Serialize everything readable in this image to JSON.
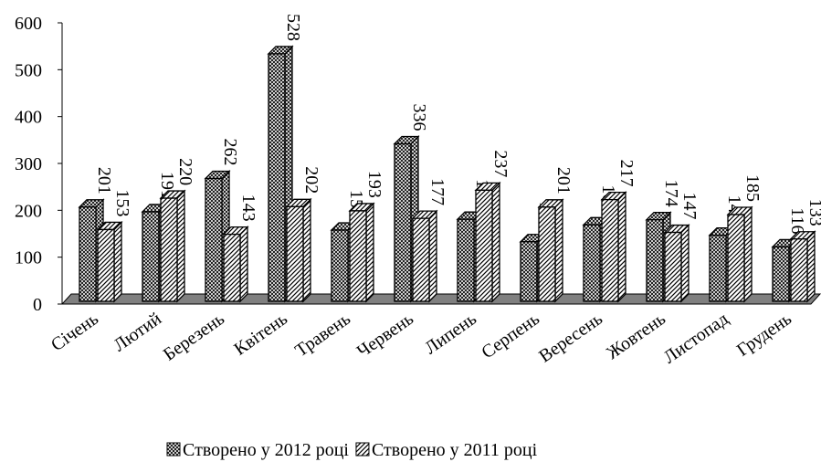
{
  "chart_data": {
    "type": "bar",
    "categories": [
      "Січень",
      "Лютий",
      "Березень",
      "Квітень",
      "Травень",
      "Червень",
      "Липень",
      "Серпень",
      "Вересень",
      "Жовтень",
      "Листопад",
      "Грудень"
    ],
    "series": [
      {
        "name": "Створено у 2012 році",
        "color": "#000000",
        "values": [
          201,
          191,
          262,
          528,
          152,
          336,
          175,
          127,
          163,
          174,
          141,
          116
        ]
      },
      {
        "name": "Створено у 2011 році",
        "color": "#000000",
        "values": [
          153,
          220,
          143,
          202,
          193,
          177,
          237,
          201,
          217,
          147,
          185,
          133
        ]
      }
    ],
    "ylim": [
      0,
      600
    ],
    "yticks": [
      0,
      100,
      200,
      300,
      400,
      500,
      600
    ],
    "legend": "bottom"
  }
}
